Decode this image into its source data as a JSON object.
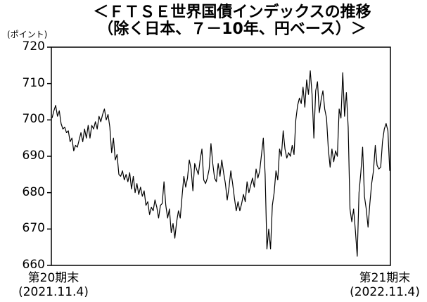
{
  "title_line1": "＜ＦＴＳＥ世界国債インデックスの推移",
  "title_line2": "（除く日本、７－10年、円ベース）＞",
  "unit_label": "(ポイント)",
  "chart_data": {
    "type": "line",
    "title": "＜ＦＴＳＥ世界国債インデックスの推移（除く日本、７－10年、円ベース）＞",
    "ylabel": "(ポイント)",
    "ylim": [
      660,
      720
    ],
    "yticks": [
      660,
      670,
      680,
      690,
      700,
      710,
      720
    ],
    "xtick_labels": [
      {
        "line1": "第20期末",
        "line2": "(2021.11.4)"
      },
      {
        "line1": "第21期末",
        "line2": "(2022.11.4)"
      }
    ],
    "grid": false,
    "x_start": "2021-11-04",
    "x_end": "2022-11-04",
    "series": [
      {
        "values": [
          700.5,
          702.5,
          704.0,
          701.0,
          702.5,
          699.0,
          697.5,
          698.0,
          696.5,
          697.0,
          694.0,
          695.0,
          691.5,
          693.0,
          692.5,
          694.5,
          696.5,
          694.0,
          697.5,
          695.0,
          698.5,
          695.0,
          698.5,
          697.5,
          699.5,
          697.5,
          701.0,
          699.5,
          701.5,
          703.0,
          700.0,
          701.5,
          698.0,
          691.0,
          695.0,
          689.0,
          690.5,
          685.0,
          684.5,
          686.0,
          683.5,
          685.0,
          683.0,
          685.5,
          681.0,
          684.5,
          680.0,
          682.5,
          679.5,
          681.5,
          679.0,
          680.5,
          676.5,
          677.5,
          674.0,
          676.0,
          675.0,
          678.0,
          676.0,
          673.0,
          676.5,
          677.0,
          683.0,
          676.5,
          673.0,
          675.5,
          669.0,
          671.5,
          667.5,
          672.0,
          675.0,
          673.0,
          679.0,
          684.5,
          681.5,
          684.0,
          689.0,
          686.5,
          680.5,
          688.0,
          686.5,
          685.0,
          689.0,
          692.0,
          683.5,
          682.5,
          684.0,
          686.5,
          693.5,
          688.0,
          684.0,
          683.0,
          688.0,
          684.5,
          689.0,
          685.5,
          682.5,
          678.0,
          681.5,
          686.0,
          682.5,
          678.5,
          675.0,
          677.5,
          675.0,
          677.0,
          679.5,
          677.5,
          683.0,
          680.0,
          682.0,
          684.0,
          681.5,
          686.5,
          684.0,
          686.0,
          690.5,
          695.0,
          685.0,
          664.5,
          670.0,
          664.5,
          676.5,
          680.0,
          686.0,
          683.5,
          692.0,
          690.0,
          697.0,
          692.0,
          689.5,
          691.0,
          690.0,
          693.0,
          690.5,
          700.0,
          704.0,
          706.0,
          704.5,
          709.0,
          703.5,
          711.0,
          707.0,
          713.5,
          707.0,
          695.0,
          708.0,
          710.5,
          702.0,
          705.5,
          708.0,
          703.0,
          700.5,
          692.0,
          687.0,
          692.0,
          688.5,
          691.5,
          690.0,
          703.0,
          700.5,
          713.0,
          701.0,
          707.5,
          698.0,
          675.5,
          672.0,
          675.5,
          669.5,
          662.5,
          680.0,
          685.5,
          692.5,
          679.0,
          675.5,
          670.5,
          677.0,
          682.5,
          686.0,
          693.0,
          687.5,
          686.5,
          687.0,
          694.0,
          697.5,
          699.0,
          697.0,
          686.0
        ]
      }
    ]
  }
}
